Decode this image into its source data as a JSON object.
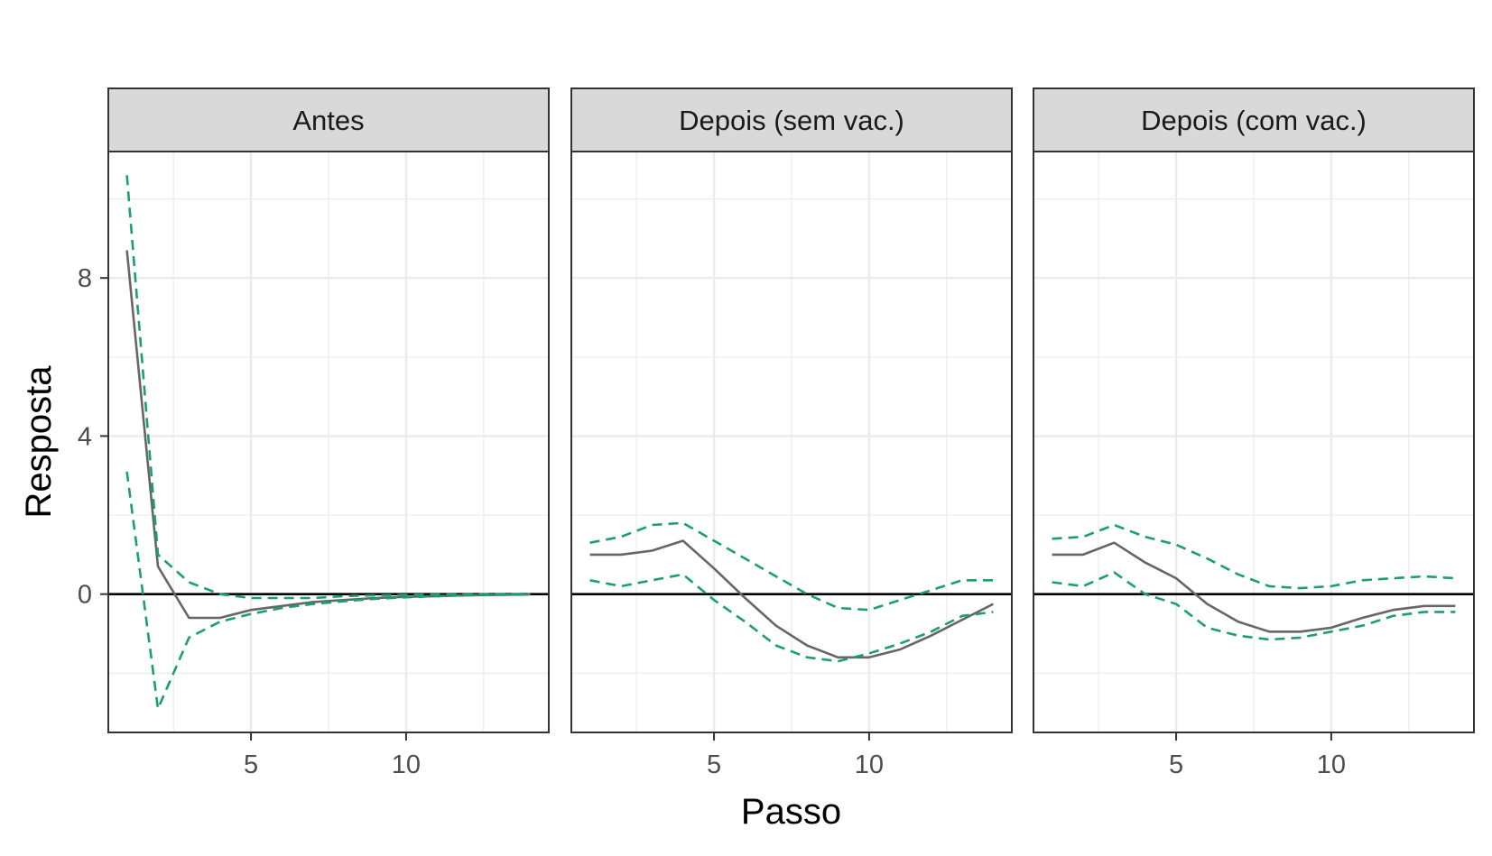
{
  "chart_data": {
    "type": "line",
    "xlabel": "Passo",
    "ylabel": "Resposta",
    "xlim": [
      0.4,
      14.6
    ],
    "ylim": [
      -3.5,
      11.2
    ],
    "x_ticks": [
      5,
      10
    ],
    "y_ticks": [
      0,
      4,
      8
    ],
    "grid": true,
    "reference_line_y": 0,
    "colors": {
      "response": "#666666",
      "bounds": "#1b9e77",
      "zero_line": "#000000",
      "strip": "#d9d9d9",
      "panel_border": "#333333",
      "grid": "#ebebeb"
    },
    "panels": [
      {
        "title": "Antes",
        "x": [
          1,
          2,
          3,
          4,
          5,
          6,
          7,
          8,
          9,
          10,
          11,
          12,
          13,
          14
        ],
        "series": [
          {
            "role": "response",
            "values": [
              8.7,
              0.7,
              -0.6,
              -0.6,
              -0.4,
              -0.3,
              -0.2,
              -0.15,
              -0.1,
              -0.07,
              -0.05,
              -0.03,
              -0.02,
              -0.01
            ]
          },
          {
            "role": "upper",
            "values": [
              10.6,
              1.0,
              0.3,
              0.0,
              -0.1,
              -0.1,
              -0.1,
              -0.05,
              -0.03,
              -0.02,
              -0.01,
              -0.01,
              0.0,
              0.0
            ]
          },
          {
            "role": "lower",
            "values": [
              3.1,
              -2.9,
              -1.1,
              -0.7,
              -0.5,
              -0.35,
              -0.25,
              -0.18,
              -0.12,
              -0.08,
              -0.05,
              -0.03,
              -0.02,
              -0.01
            ]
          }
        ]
      },
      {
        "title": "Depois (sem vac.)",
        "x": [
          1,
          2,
          3,
          4,
          5,
          6,
          7,
          8,
          9,
          10,
          11,
          12,
          13,
          14
        ],
        "series": [
          {
            "role": "response",
            "values": [
              1.0,
              1.0,
              1.1,
              1.35,
              0.65,
              -0.1,
              -0.8,
              -1.3,
              -1.6,
              -1.6,
              -1.4,
              -1.05,
              -0.65,
              -0.25
            ]
          },
          {
            "role": "upper",
            "values": [
              1.3,
              1.45,
              1.75,
              1.8,
              1.35,
              0.9,
              0.45,
              0.0,
              -0.35,
              -0.4,
              -0.15,
              0.1,
              0.35,
              0.35
            ]
          },
          {
            "role": "lower",
            "values": [
              0.35,
              0.2,
              0.35,
              0.5,
              -0.15,
              -0.7,
              -1.3,
              -1.6,
              -1.7,
              -1.5,
              -1.25,
              -0.95,
              -0.55,
              -0.45
            ]
          }
        ]
      },
      {
        "title": "Depois (com vac.)",
        "x": [
          1,
          2,
          3,
          4,
          5,
          6,
          7,
          8,
          9,
          10,
          11,
          12,
          13,
          14
        ],
        "series": [
          {
            "role": "response",
            "values": [
              1.0,
              1.0,
              1.3,
              0.8,
              0.4,
              -0.25,
              -0.7,
              -0.95,
              -0.95,
              -0.85,
              -0.6,
              -0.4,
              -0.3,
              -0.3
            ]
          },
          {
            "role": "upper",
            "values": [
              1.4,
              1.45,
              1.75,
              1.45,
              1.25,
              0.9,
              0.5,
              0.2,
              0.15,
              0.2,
              0.35,
              0.4,
              0.45,
              0.4
            ]
          },
          {
            "role": "lower",
            "values": [
              0.3,
              0.2,
              0.55,
              0.0,
              -0.25,
              -0.85,
              -1.05,
              -1.15,
              -1.1,
              -0.95,
              -0.8,
              -0.55,
              -0.45,
              -0.45
            ]
          }
        ]
      }
    ]
  }
}
